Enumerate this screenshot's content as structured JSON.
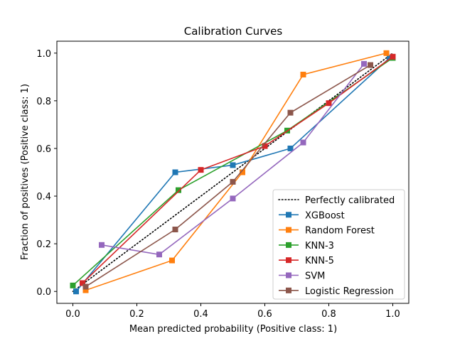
{
  "chart_data": {
    "type": "line",
    "title": "Calibration Curves",
    "xlabel": "Mean predicted probability (Positive class: 1)",
    "ylabel": "Fraction of positives (Positive class: 1)",
    "xlim": [
      -0.05,
      1.05
    ],
    "ylim": [
      -0.05,
      1.05
    ],
    "xticks": [
      "0.0",
      "0.2",
      "0.4",
      "0.6",
      "0.8",
      "1.0"
    ],
    "yticks": [
      "0.0",
      "0.2",
      "0.4",
      "0.6",
      "0.8",
      "1.0"
    ],
    "grid": false,
    "legend_position": "lower-right",
    "reference": {
      "name": "Perfectly calibrated",
      "x": [
        0,
        1
      ],
      "y": [
        0,
        1
      ],
      "color": "#000000",
      "style": "dotted"
    },
    "series": [
      {
        "name": "XGBoost",
        "color": "#1f77b4",
        "x": [
          0.01,
          0.32,
          0.5,
          0.68,
          0.99
        ],
        "y": [
          0.0,
          0.5,
          0.53,
          0.6,
          0.98
        ]
      },
      {
        "name": "Random Forest",
        "color": "#ff7f0e",
        "x": [
          0.04,
          0.31,
          0.53,
          0.72,
          0.98
        ],
        "y": [
          0.005,
          0.13,
          0.5,
          0.91,
          1.0
        ]
      },
      {
        "name": "KNN-3",
        "color": "#2ca02c",
        "x": [
          0.0,
          0.33,
          0.67,
          1.0
        ],
        "y": [
          0.025,
          0.425,
          0.675,
          0.98
        ]
      },
      {
        "name": "KNN-5",
        "color": "#d62728",
        "x": [
          0.03,
          0.4,
          0.6,
          0.8,
          1.0
        ],
        "y": [
          0.035,
          0.51,
          0.61,
          0.79,
          0.985
        ]
      },
      {
        "name": "SVM",
        "color": "#9467bd",
        "x": [
          0.09,
          0.27,
          0.5,
          0.72,
          0.91
        ],
        "y": [
          0.195,
          0.155,
          0.39,
          0.625,
          0.955
        ]
      },
      {
        "name": "Logistic Regression",
        "color": "#8c564b",
        "x": [
          0.04,
          0.32,
          0.5,
          0.68,
          0.93
        ],
        "y": [
          0.02,
          0.26,
          0.46,
          0.75,
          0.95
        ]
      }
    ]
  }
}
